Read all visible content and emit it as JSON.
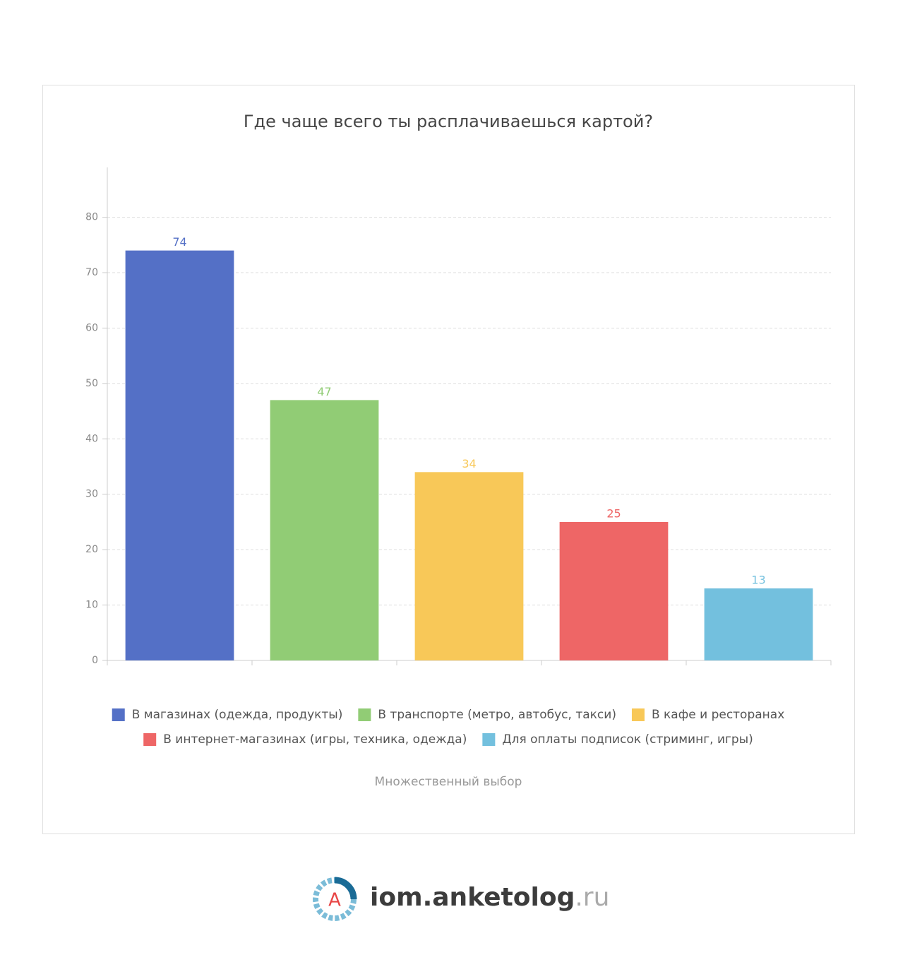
{
  "chart_data": {
    "type": "bar",
    "title": "Где чаще всего ты расплачиваешься картой?",
    "categories": [
      "В магазинах (одежда, продукты)",
      "В транспорте (метро, автобус, такси)",
      "В кафе и ресторанах",
      "В интернет-магазинах (игры, техника, одежда)",
      "Для оплаты подписок (стриминг, игры)"
    ],
    "values": [
      74,
      47,
      34,
      25,
      13
    ],
    "colors": [
      "#5470c6",
      "#91cc75",
      "#f8c858",
      "#ee6666",
      "#73c0de"
    ],
    "ylim": [
      0,
      89
    ],
    "yticks": [
      0,
      10,
      20,
      30,
      40,
      50,
      60,
      70,
      80
    ],
    "grid": true,
    "legend": "bottom",
    "note": "Множественный выбор"
  },
  "brand": {
    "letter": "A",
    "name": "iom.anketolog",
    "domain": ".ru"
  }
}
